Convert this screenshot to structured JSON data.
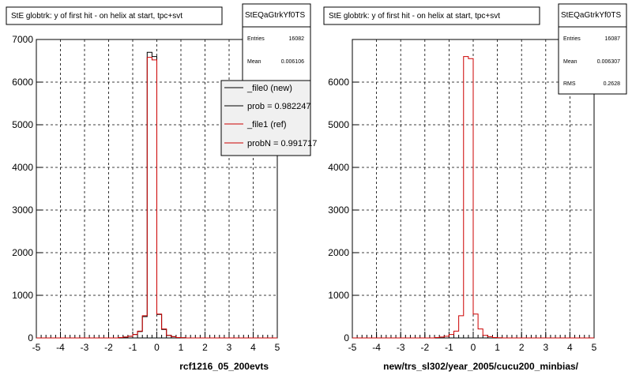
{
  "chart_data": [
    {
      "type": "line",
      "title": "StE globtrk: y of first hit - on helix at start, tpc+svt",
      "xlabel": "rcf1216_05_200evts",
      "ylabel": "",
      "xlim": [
        -5,
        5
      ],
      "ylim": [
        0,
        7000
      ],
      "xticks": [
        "-5",
        "-4",
        "-3",
        "-2",
        "-1",
        "0",
        "1",
        "2",
        "3",
        "4",
        "5"
      ],
      "yticks": [
        "0",
        "1000",
        "2000",
        "3000",
        "4000",
        "5000",
        "6000",
        "7000"
      ],
      "grid": true,
      "bin_edges": [
        -5.0,
        -4.8,
        -4.6,
        -4.4,
        -4.2,
        -4.0,
        -3.8,
        -3.6,
        -3.4,
        -3.2,
        -3.0,
        -2.8,
        -2.6,
        -2.4,
        -2.2,
        -2.0,
        -1.8,
        -1.6,
        -1.4,
        -1.2,
        -1.0,
        -0.8,
        -0.6,
        -0.4,
        -0.2,
        0.0,
        0.2,
        0.4,
        0.6,
        0.8,
        1.0,
        1.2,
        1.4,
        1.6,
        1.8,
        2.0,
        2.2,
        2.4,
        2.6,
        2.8,
        3.0,
        3.2,
        3.4,
        3.6,
        3.8,
        4.0,
        4.2,
        4.4,
        4.6,
        4.8,
        5.0
      ],
      "series": [
        {
          "name": "_file0 (new)",
          "color": "#000000",
          "values": [
            0,
            0,
            0,
            0,
            0,
            0,
            0,
            0,
            0,
            0,
            0,
            0,
            0,
            0,
            0,
            0,
            0,
            10,
            20,
            40,
            80,
            150,
            500,
            6700,
            6600,
            550,
            200,
            60,
            30,
            10,
            5,
            0,
            0,
            0,
            0,
            0,
            0,
            0,
            0,
            0,
            0,
            0,
            0,
            0,
            0,
            0,
            0,
            0,
            0,
            0
          ]
        },
        {
          "name": "_file1 (ref)",
          "color": "#cc0000",
          "values": [
            0,
            0,
            0,
            0,
            0,
            0,
            0,
            0,
            0,
            0,
            0,
            0,
            0,
            0,
            0,
            0,
            0,
            10,
            20,
            40,
            80,
            160,
            520,
            6580,
            6520,
            560,
            210,
            60,
            30,
            10,
            5,
            0,
            0,
            0,
            0,
            0,
            0,
            0,
            0,
            0,
            0,
            0,
            0,
            0,
            0,
            0,
            0,
            0,
            0,
            0
          ]
        }
      ],
      "stats": {
        "name": "StEQaGtrkYf0TS",
        "rows": [
          {
            "label": "Entries",
            "value": "16082"
          },
          {
            "label": "Mean",
            "value": "0.006106"
          }
        ]
      },
      "legend": {
        "placement": "top-right",
        "entries": [
          {
            "label": "_file0 (new)",
            "color": "#000000"
          },
          {
            "label": "prob = 0.982247",
            "color": "#000000"
          },
          {
            "label": "_file1 (ref)",
            "color": "#cc0000"
          },
          {
            "label": "probN = 0.991717",
            "color": "#cc0000"
          }
        ]
      }
    },
    {
      "type": "line",
      "title": "StE globtrk: y of first hit - on helix at start, tpc+svt",
      "xlabel": "new/trs_sl302/year_2005/cucu200_minbias/",
      "ylabel": "",
      "xlim": [
        -5,
        5
      ],
      "ylim": [
        0,
        7000
      ],
      "xticks": [
        "-5",
        "-4",
        "-3",
        "-2",
        "-1",
        "0",
        "1",
        "2",
        "3",
        "4",
        "5"
      ],
      "yticks": [
        "0",
        "1000",
        "2000",
        "3000",
        "4000",
        "5000",
        "6000"
      ],
      "grid": true,
      "bin_edges": [
        -5.0,
        -4.8,
        -4.6,
        -4.4,
        -4.2,
        -4.0,
        -3.8,
        -3.6,
        -3.4,
        -3.2,
        -3.0,
        -2.8,
        -2.6,
        -2.4,
        -2.2,
        -2.0,
        -1.8,
        -1.6,
        -1.4,
        -1.2,
        -1.0,
        -0.8,
        -0.6,
        -0.4,
        -0.2,
        0.0,
        0.2,
        0.4,
        0.6,
        0.8,
        1.0,
        1.2,
        1.4,
        1.6,
        1.8,
        2.0,
        2.2,
        2.4,
        2.6,
        2.8,
        3.0,
        3.2,
        3.4,
        3.6,
        3.8,
        4.0,
        4.2,
        4.4,
        4.6,
        4.8,
        5.0
      ],
      "series": [
        {
          "name": "_file1 (ref)",
          "color": "#cc0000",
          "values": [
            0,
            0,
            0,
            0,
            0,
            0,
            0,
            0,
            0,
            0,
            0,
            0,
            0,
            0,
            0,
            0,
            0,
            10,
            20,
            40,
            80,
            160,
            520,
            6600,
            6550,
            560,
            210,
            60,
            30,
            10,
            5,
            0,
            0,
            0,
            0,
            0,
            0,
            0,
            0,
            0,
            0,
            0,
            0,
            0,
            0,
            0,
            0,
            0,
            0,
            0
          ]
        }
      ],
      "stats": {
        "name": "StEQaGtrkYf0TS",
        "rows": [
          {
            "label": "Entries",
            "value": "16087"
          },
          {
            "label": "Mean",
            "value": "0.006307"
          },
          {
            "label": "RMS",
            "value": "0.2628"
          }
        ]
      }
    }
  ]
}
